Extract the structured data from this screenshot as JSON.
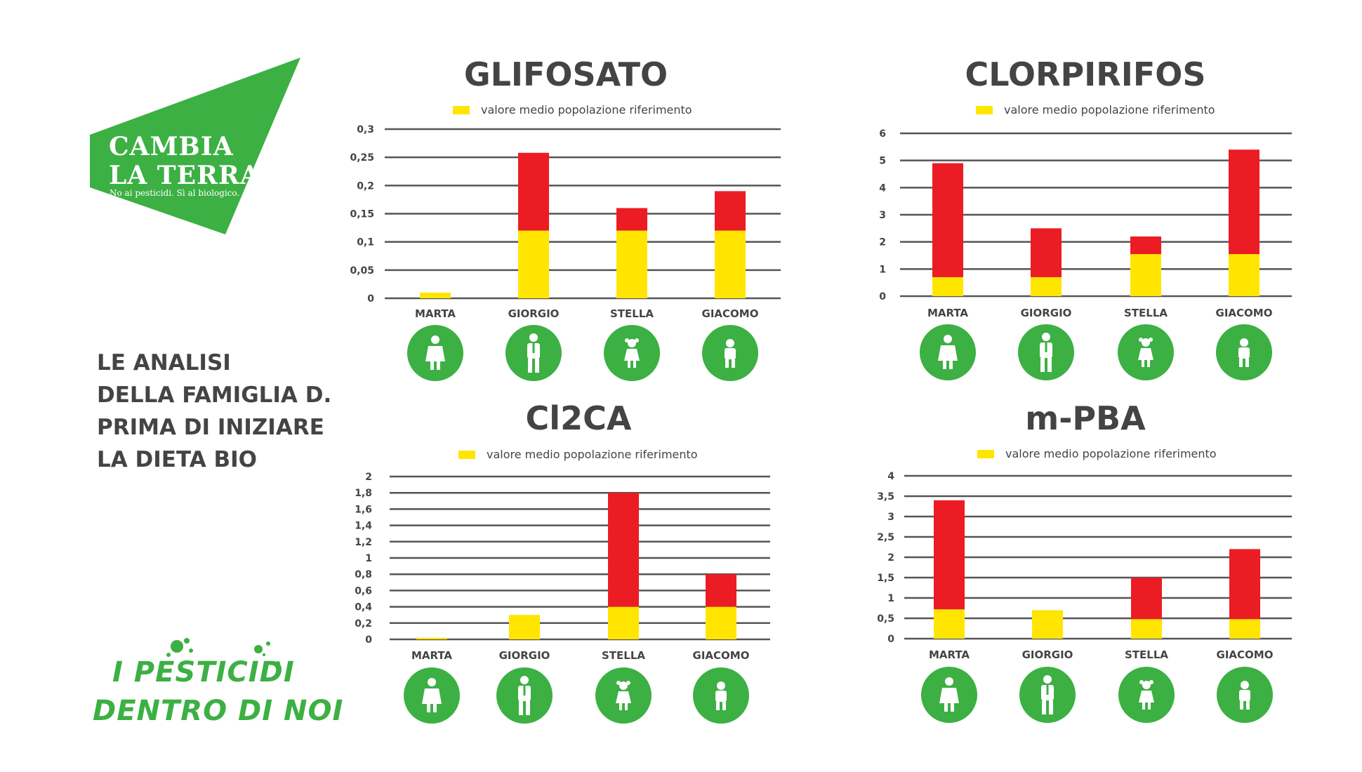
{
  "colors": {
    "green": "#3cb043",
    "red": "#ec1c24",
    "yellow": "#ffe500",
    "dark_text": "#444444",
    "grid": "#555555"
  },
  "logo": {
    "line1": "CAMBIA",
    "line2": "LA TERRA",
    "tagline": "No ai pesticidi. Sì al biologico."
  },
  "side": {
    "title_lines": [
      "LE ANALISI",
      "DELLA FAMIGLIA D.",
      "PRIMA DI INIZIARE",
      "LA DIETA BIO"
    ],
    "campaign_line1": "I PESTICIDI",
    "campaign_line2": "DENTRO DI NOI"
  },
  "chart_data": [
    {
      "type": "bar",
      "stacked": true,
      "title": "GLIFOSATO",
      "legend": "valore medio popolazione riferimento",
      "categories": [
        "MARTA",
        "GIORGIO",
        "STELLA",
        "GIACOMO"
      ],
      "icons": [
        "woman-icon",
        "man-icon",
        "girl-icon",
        "boy-icon"
      ],
      "series": [
        {
          "name": "valore medio popolazione riferimento",
          "color": "#ffe500",
          "values": [
            0.01,
            0.12,
            0.12,
            0.12
          ]
        },
        {
          "color": "#ec1c24",
          "values": [
            0,
            0.138,
            0.04,
            0.07
          ]
        }
      ],
      "ylim": [
        0,
        0.3
      ],
      "yticks": [
        "0",
        "0,05",
        "0,1",
        "0,15",
        "0,2",
        "0,25",
        "0,3"
      ]
    },
    {
      "type": "bar",
      "stacked": true,
      "title": "CLORPIRIFOS",
      "legend": "valore medio popolazione riferimento",
      "categories": [
        "MARTA",
        "GIORGIO",
        "STELLA",
        "GIACOMO"
      ],
      "icons": [
        "woman-icon",
        "man-icon",
        "girl-icon",
        "boy-icon"
      ],
      "series": [
        {
          "name": "valore medio popolazione riferimento",
          "color": "#ffe500",
          "values": [
            0.7,
            0.7,
            1.55,
            1.55
          ]
        },
        {
          "color": "#ec1c24",
          "values": [
            4.2,
            1.8,
            0.65,
            3.85
          ]
        }
      ],
      "ylim": [
        0,
        6
      ],
      "yticks": [
        "0",
        "1",
        "2",
        "3",
        "4",
        "5",
        "6"
      ]
    },
    {
      "type": "bar",
      "stacked": true,
      "title": "Cl2CA",
      "legend": "valore medio popolazione riferimento",
      "categories": [
        "MARTA",
        "GIORGIO",
        "STELLA",
        "GIACOMO"
      ],
      "icons": [
        "woman-icon",
        "man-icon",
        "girl-icon",
        "boy-icon"
      ],
      "series": [
        {
          "name": "valore medio popolazione riferimento",
          "color": "#ffe500",
          "values": [
            0.02,
            0.3,
            0.4,
            0.4
          ]
        },
        {
          "color": "#ec1c24",
          "values": [
            0,
            0,
            1.4,
            0.4
          ]
        }
      ],
      "ylim": [
        0,
        2
      ],
      "yticks": [
        "0",
        "0,2",
        "0,4",
        "0,6",
        "0,8",
        "1",
        "1,2",
        "1,4",
        "1,6",
        "1,8",
        "2"
      ]
    },
    {
      "type": "bar",
      "stacked": true,
      "title": "m-PBA",
      "legend": "valore medio popolazione riferimento",
      "categories": [
        "MARTA",
        "GIORGIO",
        "STELLA",
        "GIACOMO"
      ],
      "icons": [
        "woman-icon",
        "man-icon",
        "girl-icon",
        "boy-icon"
      ],
      "series": [
        {
          "name": "valore medio popolazione riferimento",
          "color": "#ffe500",
          "values": [
            0.72,
            0.7,
            0.48,
            0.48
          ]
        },
        {
          "color": "#ec1c24",
          "values": [
            2.68,
            0,
            1.02,
            1.72
          ]
        }
      ],
      "ylim": [
        0,
        4
      ],
      "yticks": [
        "0",
        "0,5",
        "1",
        "1,5",
        "2",
        "2,5",
        "3",
        "3,5",
        "4"
      ]
    }
  ]
}
